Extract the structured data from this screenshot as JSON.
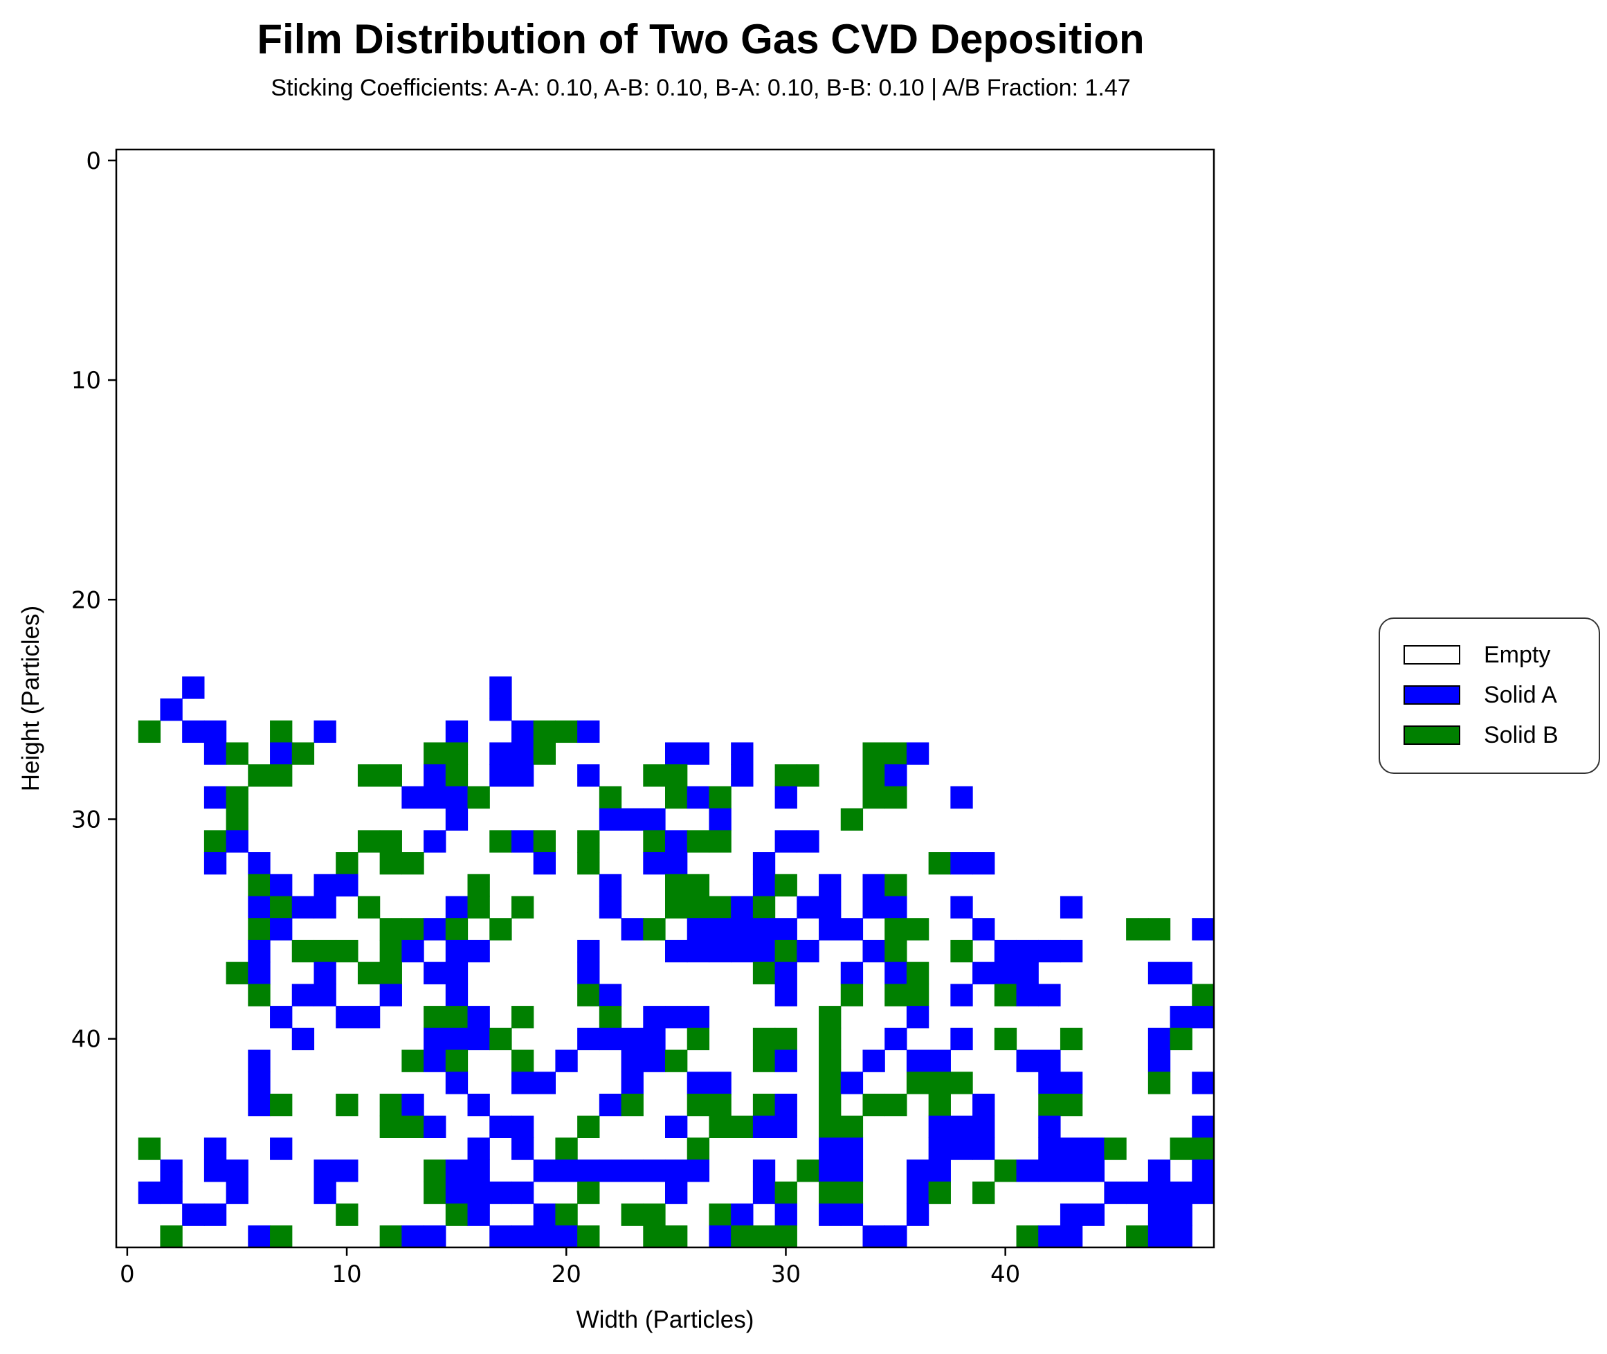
{
  "chart_data": {
    "type": "heatmap",
    "title": "Film Distribution of Two Gas CVD Deposition",
    "subtitle": "Sticking Coefficients: A-A: 0.10, A-B: 0.10, B-A: 0.10, B-B: 0.10 | A/B Fraction: 1.47",
    "xlabel": "Width (Particles)",
    "ylabel": "Height (Particles)",
    "x_ticks": [
      "0",
      "10",
      "20",
      "30",
      "40"
    ],
    "y_ticks": [
      "0",
      "10",
      "20",
      "30",
      "40"
    ],
    "xlim": [
      -0.5,
      49.5
    ],
    "ylim": [
      49.5,
      -0.5
    ],
    "grid": false,
    "legend_position": "right",
    "colors": {
      "empty": "#ffffff",
      "solid_a": "#0000ff",
      "solid_b": "#008000"
    },
    "legend": [
      {
        "label": "Empty",
        "key": "empty",
        "color": "#ffffff"
      },
      {
        "label": "Solid A",
        "key": "solid_a",
        "color": "#0000ff"
      },
      {
        "label": "Solid B",
        "key": "solid_b",
        "color": "#008000"
      }
    ],
    "cells_encoding": "rows: row index = height value; each string has 50 chars (width 0-49); '.' = Empty, 'A' = Solid A, 'B' = Solid B",
    "rows": {
      "24": "...A.............A................................",
      "25": "..A..............A................................",
      "26": ".B.AA..B.A.....A..ABBA............................",
      "27": "....AB.AB.....BB.AAB.....AA.A.....BBA.............",
      "28": "......BB...BB.AB.AA..A..BB..A.BB..BA..............",
      "29": "....AB.......AAAB.....B..BAB..A...BB..A...........",
      "30": ".....B.........A......AAA..A.....B...............",
      "31": "....BA.....BB.A..BAB.B..BABB..AA..................",
      "32": "....A.A...B.BB.....A.B..AA...A.......BAA..........",
      "33": "......BA.AA.....B.....A..BB..AB.A.AB..............",
      "34": "......ABAA.B...AB.B...A..BBBAB.AA.AA..A....A......",
      "35": "......BA....BBAB.B.....AB.AAAAA.AA.BB..A......BB.A",
      "36": "......A.BBB.BA.AA....A...AAAAABA..AB..B.AAAA......",
      "37": ".....BA..A.BB.AA.....A.......BA..A.AB..AAA.....AA.",
      "38": "......B.AA..A..A.....BA.......A..B.BB.A.BAA......B",
      "39": ".......A..AA..BBA.B...B.AAA.....B...A...........AA",
      "40": "........A.....AAAB...AAAA.B..BB.B..A..A.B..B...AB.",
      "41": "......A......BAB..B.A..AAB...BA.B.A.AA...AA....A..",
      "42": "......A........A..AA...A..AA....BA..BBB...AA...B.A",
      "43": "......AB..B.BA..A.....AB..BB.BA.B.BB.B.A..BB......",
      "44": "............BBA..AA..B...A.BBAA.BB...AAA..A......A",
      "45": ".B..A..A........A.A.B.....B.....AA...AAA..AAAB..BB",
      "46": "..A.AA...AA...BAA..AAAAAAAA..A.BAA..AA..BAAAA..A.A",
      "47": ".AA..A...A....BAAAA..B...A...AB.BB..AB.B.....AAAAA",
      "48": "...AA.....B....BA..AB..BB..BA.A.AA..A......AA..AA.",
      "49": "..B...AB....BAA..AAAAB..BB.ABBB...AA.....BAA..BAA."
    }
  }
}
